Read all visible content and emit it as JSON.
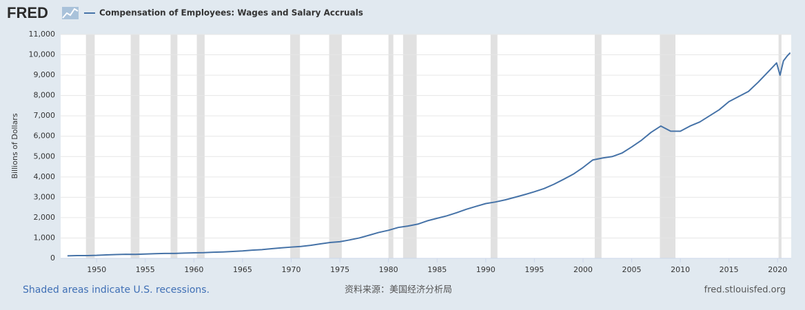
{
  "logo": "FRED",
  "chart_data": {
    "type": "line",
    "x": [
      1947,
      1948,
      1949,
      1950,
      1951,
      1952,
      1953,
      1954,
      1955,
      1956,
      1957,
      1958,
      1959,
      1960,
      1961,
      1962,
      1963,
      1964,
      1965,
      1966,
      1967,
      1968,
      1969,
      1970,
      1971,
      1972,
      1973,
      1974,
      1975,
      1976,
      1977,
      1978,
      1979,
      1980,
      1981,
      1982,
      1983,
      1984,
      1985,
      1986,
      1987,
      1988,
      1989,
      1990,
      1991,
      1992,
      1993,
      1994,
      1995,
      1996,
      1997,
      1998,
      1999,
      2000,
      2001,
      2002,
      2003,
      2004,
      2005,
      2006,
      2007,
      2008,
      2009,
      2010,
      2011,
      2012,
      2013,
      2014,
      2015,
      2016,
      2017,
      2018,
      2019,
      2019.9,
      2020.25,
      2020.6,
      2021,
      2021.3
    ],
    "series": [
      {
        "name": "Compensation of Employees: Wages and Salary Accruals",
        "color": "#4572a7",
        "values": [
          123,
          135,
          134,
          147,
          171,
          185,
          198,
          196,
          212,
          229,
          240,
          241,
          259,
          272,
          280,
          299,
          314,
          337,
          363,
          400,
          429,
          472,
          518,
          552,
          584,
          639,
          710,
          780,
          815,
          903,
          1000,
          1134,
          1271,
          1377,
          1517,
          1588,
          1678,
          1844,
          1968,
          2088,
          2239,
          2410,
          2552,
          2691,
          2769,
          2873,
          3000,
          3131,
          3273,
          3429,
          3639,
          3882,
          4136,
          4463,
          4833,
          4930,
          5000,
          5171,
          5473,
          5800,
          6191,
          6500,
          6250,
          6244,
          6500,
          6700,
          7000,
          7300,
          7700,
          7950,
          8200,
          8650,
          9150,
          9600,
          9000,
          9700,
          9950,
          10100
        ]
      }
    ],
    "recessions": [
      [
        1948.9,
        1949.8
      ],
      [
        1953.5,
        1954.4
      ],
      [
        1957.6,
        1958.3
      ],
      [
        1960.3,
        1961.1
      ],
      [
        1969.9,
        1970.9
      ],
      [
        1973.9,
        1975.2
      ],
      [
        1980.0,
        1980.5
      ],
      [
        1981.5,
        1982.9
      ],
      [
        1990.5,
        1991.2
      ],
      [
        2001.2,
        2001.9
      ],
      [
        2007.9,
        2009.5
      ],
      [
        2020.1,
        2020.4
      ]
    ],
    "recession_color": "#e1e1e1",
    "y_label": "Billions of Dollars",
    "xlim": [
      1946.3,
      2021.4
    ],
    "xticks": [
      1950,
      1955,
      1960,
      1965,
      1970,
      1975,
      1980,
      1985,
      1990,
      1995,
      2000,
      2005,
      2010,
      2015,
      2020
    ],
    "ylim": [
      0,
      11000
    ],
    "yticks": [
      0,
      {
        "value": 1000,
        "label": "1,000"
      },
      {
        "value": 2000,
        "label": "2,000"
      },
      {
        "value": 3000,
        "label": "3,000"
      },
      {
        "value": 4000,
        "label": "4,000"
      },
      {
        "value": 5000,
        "label": "5,000"
      },
      {
        "value": 6000,
        "label": "6,000"
      },
      {
        "value": 7000,
        "label": "7,000"
      },
      {
        "value": 8000,
        "label": "8,000"
      },
      {
        "value": 9000,
        "label": "9,000"
      },
      {
        "value": 10000,
        "label": "10,000"
      },
      {
        "value": 11000,
        "label": "11,000"
      }
    ],
    "grid": true,
    "note": "Shaded areas indicate U.S. recessions.",
    "source": "资料来源：美国经济分析局",
    "url": "fred.stlouisfed.org"
  }
}
